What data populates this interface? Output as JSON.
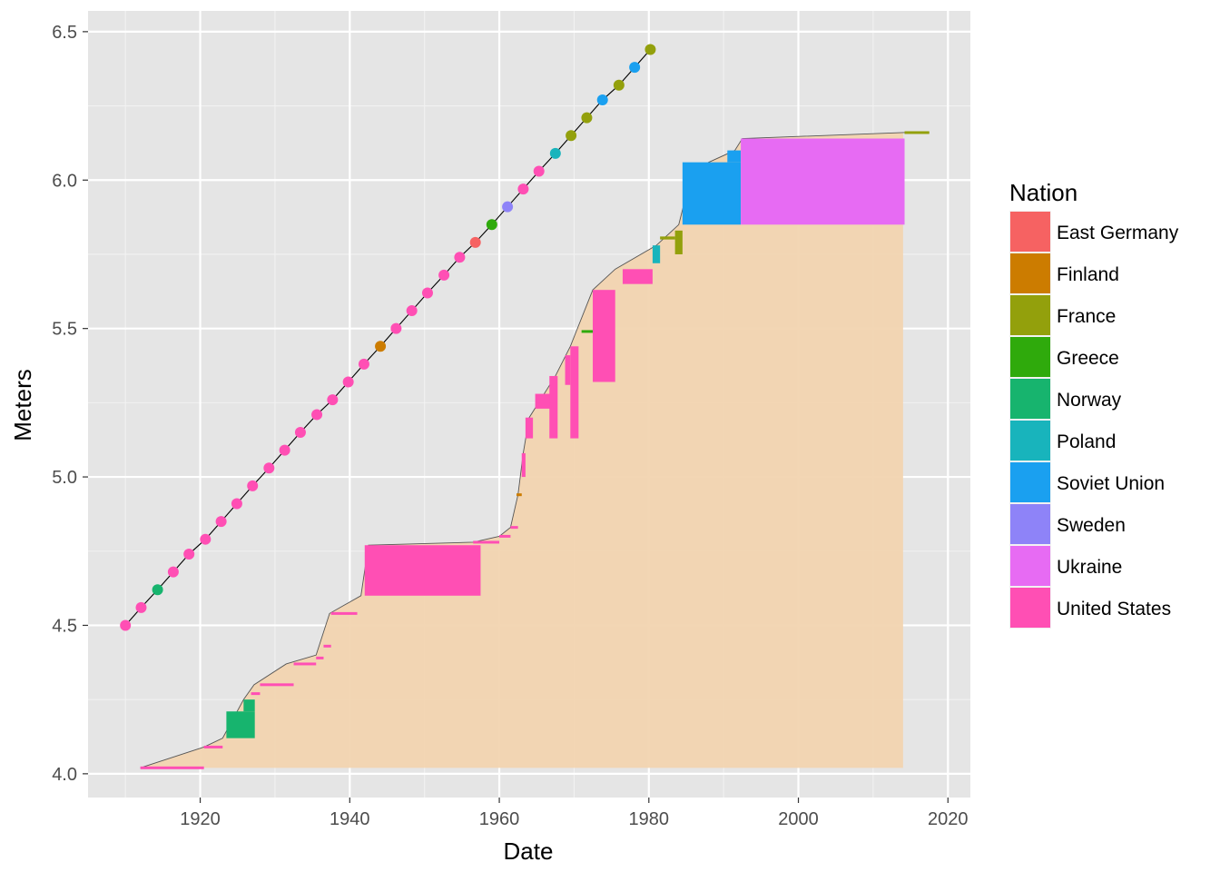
{
  "chart_data": {
    "type": "step-area-with-line",
    "xlabel": "Date",
    "ylabel": "Meters",
    "xlim": [
      1905,
      2023
    ],
    "ylim": [
      3.92,
      6.57
    ],
    "x_ticks": [
      "1920",
      "1940",
      "1960",
      "1980",
      "2000",
      "2020"
    ],
    "y_ticks": [
      "4.0",
      "4.5",
      "5.0",
      "5.5",
      "6.0",
      "6.5"
    ],
    "grid": true,
    "legend": {
      "title": "Nation",
      "placement": "right",
      "entries": [
        {
          "label": "East Germany",
          "color": "#F8766D"
        },
        {
          "label": "Finland",
          "color": "#D39200"
        },
        {
          "label": "France",
          "color": "#93AA00"
        },
        {
          "label": "Greece",
          "color": "#00BA38"
        },
        {
          "label": "Norway",
          "color": "#00C19F"
        },
        {
          "label": "Poland",
          "color": "#00B9E3"
        },
        {
          "label": "Soviet Union",
          "color": "#619CFF"
        },
        {
          "label": "Sweden",
          "color": "#DB72FB"
        },
        {
          "label": "Ukraine",
          "color": "#FF61C3"
        },
        {
          "label": "United States",
          "color": "#FF61C3"
        }
      ]
    },
    "area": {
      "color": "#F2D4B0",
      "floor": 4.02,
      "x": [
        1912.0,
        1920.5,
        1923.0,
        1925.8,
        1927.2,
        1931.5,
        1935.5,
        1937.3,
        1941.5,
        1942.5,
        1956.5,
        1960.0,
        1961.5,
        1962.5,
        1963.2,
        1964.0,
        1967.5,
        1969.5,
        1972.5,
        1975.5,
        1981.0,
        1984.0,
        1985.5,
        1988.0,
        1991.5,
        1992.5,
        2014.0
      ],
      "y": [
        4.02,
        4.09,
        4.12,
        4.25,
        4.3,
        4.37,
        4.4,
        4.54,
        4.6,
        4.77,
        4.78,
        4.8,
        4.83,
        4.94,
        5.08,
        5.2,
        5.34,
        5.44,
        5.63,
        5.7,
        5.78,
        5.85,
        6.0,
        6.06,
        6.1,
        6.14,
        6.16
      ]
    },
    "record_line": {
      "x": [
        1910.5,
        2017.5
      ],
      "y": [
        6.14,
        6.16
      ]
    },
    "record_blocks": [
      {
        "nation": "United States",
        "x": [
          1912.0,
          1920.5
        ],
        "y": [
          4.02,
          4.02
        ]
      },
      {
        "nation": "United States",
        "x": [
          1920.5,
          1923.0
        ],
        "y": [
          4.09,
          4.09
        ]
      },
      {
        "nation": "Norway",
        "x": [
          1923.5,
          1927.3
        ],
        "y": [
          4.12,
          4.21
        ]
      },
      {
        "nation": "Norway",
        "x": [
          1925.8,
          1927.3
        ],
        "y": [
          4.21,
          4.25
        ]
      },
      {
        "nation": "United States",
        "x": [
          1926.8,
          1928.0
        ],
        "y": [
          4.27,
          4.27
        ]
      },
      {
        "nation": "United States",
        "x": [
          1928.0,
          1932.5
        ],
        "y": [
          4.3,
          4.3
        ]
      },
      {
        "nation": "United States",
        "x": [
          1932.5,
          1935.5
        ],
        "y": [
          4.37,
          4.37
        ]
      },
      {
        "nation": "United States",
        "x": [
          1935.5,
          1936.5
        ],
        "y": [
          4.39,
          4.39
        ]
      },
      {
        "nation": "United States",
        "x": [
          1936.5,
          1937.5
        ],
        "y": [
          4.43,
          4.43
        ]
      },
      {
        "nation": "United States",
        "x": [
          1937.5,
          1941.0
        ],
        "y": [
          4.54,
          4.54
        ]
      },
      {
        "nation": "United States",
        "x": [
          1942.0,
          1957.5
        ],
        "y": [
          4.6,
          4.77
        ]
      },
      {
        "nation": "United States",
        "x": [
          1956.5,
          1960.0
        ],
        "y": [
          4.78,
          4.78
        ]
      },
      {
        "nation": "United States",
        "x": [
          1960.0,
          1961.5
        ],
        "y": [
          4.8,
          4.8
        ]
      },
      {
        "nation": "United States",
        "x": [
          1961.5,
          1962.5
        ],
        "y": [
          4.83,
          4.83
        ]
      },
      {
        "nation": "Finland",
        "x": [
          1962.3,
          1963.0
        ],
        "y": [
          4.94,
          4.94
        ]
      },
      {
        "nation": "United States",
        "x": [
          1963.0,
          1963.5
        ],
        "y": [
          5.0,
          5.08
        ]
      },
      {
        "nation": "United States",
        "x": [
          1963.5,
          1964.5
        ],
        "y": [
          5.13,
          5.2
        ]
      },
      {
        "nation": "United States",
        "x": [
          1964.8,
          1966.8
        ],
        "y": [
          5.23,
          5.28
        ]
      },
      {
        "nation": "United States",
        "x": [
          1966.7,
          1967.8
        ],
        "y": [
          5.13,
          5.34
        ]
      },
      {
        "nation": "United States",
        "x": [
          1968.8,
          1969.5
        ],
        "y": [
          5.31,
          5.41
        ]
      },
      {
        "nation": "United States",
        "x": [
          1969.5,
          1970.6
        ],
        "y": [
          5.13,
          5.44
        ]
      },
      {
        "nation": "Greece",
        "x": [
          1971.0,
          1972.5
        ],
        "y": [
          5.49,
          5.49
        ]
      },
      {
        "nation": "United States",
        "x": [
          1972.5,
          1975.5
        ],
        "y": [
          5.32,
          5.63
        ]
      },
      {
        "nation": "United States",
        "x": [
          1976.5,
          1980.5
        ],
        "y": [
          5.65,
          5.7
        ]
      },
      {
        "nation": "Poland",
        "x": [
          1980.5,
          1981.5
        ],
        "y": [
          5.72,
          5.78
        ]
      },
      {
        "nation": "France",
        "x": [
          1981.5,
          1983.5
        ],
        "y": [
          5.8,
          5.81
        ]
      },
      {
        "nation": "France",
        "x": [
          1983.5,
          1984.5
        ],
        "y": [
          5.75,
          5.83
        ]
      },
      {
        "nation": "Soviet Union",
        "x": [
          1984.5,
          1992.3
        ],
        "y": [
          5.85,
          6.06
        ]
      },
      {
        "nation": "Soviet Union",
        "x": [
          1990.5,
          1992.3
        ],
        "y": [
          6.06,
          6.1
        ]
      },
      {
        "nation": "Ukraine",
        "x": [
          1992.3,
          2014.2
        ],
        "y": [
          5.85,
          6.14
        ]
      },
      {
        "nation": "France",
        "x": [
          2014.2,
          2017.5
        ],
        "y": [
          6.16,
          6.16
        ]
      }
    ],
    "progression_series": {
      "x": [
        1910.0,
        1912.1,
        1914.3,
        1916.4,
        1918.5,
        1920.7,
        1922.8,
        1924.9,
        1927.0,
        1929.2,
        1931.3,
        1933.4,
        1935.6,
        1937.7,
        1939.8,
        1941.9,
        1944.1,
        1946.2,
        1948.3,
        1950.4,
        1952.6,
        1954.7,
        1956.8,
        1959.0,
        1961.1,
        1963.2,
        1965.3,
        1967.5,
        1969.6,
        1971.7,
        1973.8,
        1976.0,
        1978.1,
        1980.2
      ],
      "y": [
        4.5,
        4.56,
        4.62,
        4.68,
        4.74,
        4.79,
        4.85,
        4.91,
        4.97,
        5.03,
        5.09,
        5.15,
        5.21,
        5.26,
        5.32,
        5.38,
        5.44,
        5.5,
        5.56,
        5.62,
        5.68,
        5.74,
        5.79,
        5.85,
        5.91,
        5.97,
        6.03,
        6.09,
        6.15,
        6.21,
        6.27,
        6.32,
        6.38,
        6.44
      ],
      "nations": [
        "United States",
        "United States",
        "Norway",
        "United States",
        "United States",
        "United States",
        "United States",
        "United States",
        "United States",
        "United States",
        "United States",
        "United States",
        "United States",
        "United States",
        "United States",
        "United States",
        "Finland",
        "United States",
        "United States",
        "United States",
        "United States",
        "United States",
        "East Germany",
        "Greece",
        "Sweden",
        "United States",
        "United States",
        "Poland",
        "France",
        "France",
        "Soviet Union",
        "France",
        "Soviet Union",
        "France"
      ]
    }
  }
}
